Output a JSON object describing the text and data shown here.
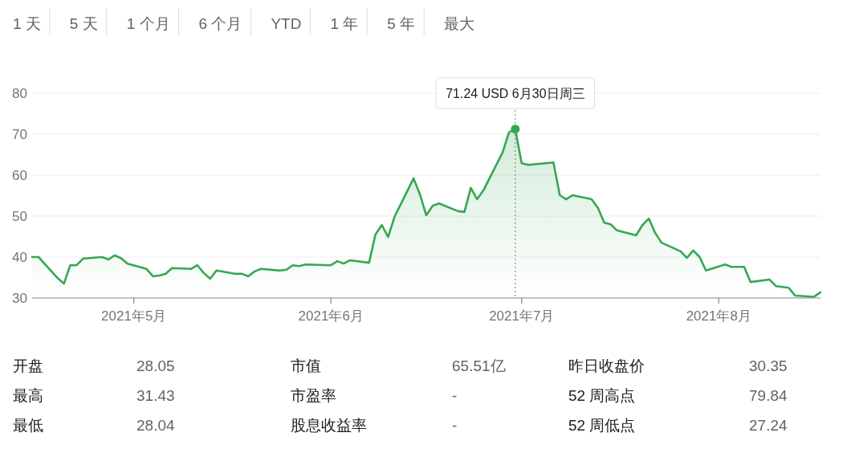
{
  "chart_data": {
    "type": "area",
    "x": [
      "2021-04-15",
      "2021-04-16",
      "2021-04-19",
      "2021-04-20",
      "2021-04-21",
      "2021-04-22",
      "2021-04-23",
      "2021-04-26",
      "2021-04-27",
      "2021-04-28",
      "2021-04-29",
      "2021-04-30",
      "2021-05-03",
      "2021-05-04",
      "2021-05-05",
      "2021-05-06",
      "2021-05-07",
      "2021-05-10",
      "2021-05-11",
      "2021-05-12",
      "2021-05-13",
      "2021-05-14",
      "2021-05-17",
      "2021-05-18",
      "2021-05-19",
      "2021-05-20",
      "2021-05-21",
      "2021-05-24",
      "2021-05-25",
      "2021-05-26",
      "2021-05-27",
      "2021-05-28",
      "2021-06-01",
      "2021-06-02",
      "2021-06-03",
      "2021-06-04",
      "2021-06-07",
      "2021-06-08",
      "2021-06-09",
      "2021-06-10",
      "2021-06-11",
      "2021-06-14",
      "2021-06-15",
      "2021-06-16",
      "2021-06-17",
      "2021-06-18",
      "2021-06-21",
      "2021-06-22",
      "2021-06-23",
      "2021-06-24",
      "2021-06-25",
      "2021-06-28",
      "2021-06-29",
      "2021-06-30",
      "2021-07-01",
      "2021-07-02",
      "2021-07-06",
      "2021-07-07",
      "2021-07-08",
      "2021-07-09",
      "2021-07-12",
      "2021-07-13",
      "2021-07-14",
      "2021-07-15",
      "2021-07-16",
      "2021-07-19",
      "2021-07-20",
      "2021-07-21",
      "2021-07-22",
      "2021-07-23",
      "2021-07-26",
      "2021-07-27",
      "2021-07-28",
      "2021-07-29",
      "2021-07-30",
      "2021-08-02",
      "2021-08-03",
      "2021-08-04",
      "2021-08-05",
      "2021-08-06",
      "2021-08-09",
      "2021-08-10",
      "2021-08-11",
      "2021-08-12",
      "2021-08-13",
      "2021-08-16",
      "2021-08-17"
    ],
    "series": [
      {
        "color": "#34a853",
        "values": [
          40.0,
          40.0,
          34.9,
          33.5,
          38.0,
          38.0,
          39.6,
          40.0,
          39.4,
          40.4,
          39.7,
          38.4,
          37.1,
          35.3,
          35.5,
          35.9,
          37.3,
          37.1,
          38.0,
          36.1,
          34.7,
          36.7,
          35.9,
          35.9,
          35.3,
          36.5,
          37.1,
          36.7,
          36.9,
          38.0,
          37.8,
          38.2,
          38.0,
          39.0,
          38.4,
          39.2,
          38.6,
          45.5,
          47.8,
          44.9,
          49.8,
          59.2,
          55.3,
          50.2,
          52.5,
          53.1,
          51.2,
          51.0,
          56.9,
          54.1,
          56.3,
          65.5,
          70.4,
          71.24,
          62.9,
          62.5,
          63.1,
          55.1,
          54.1,
          55.1,
          54.1,
          52.0,
          48.4,
          48.0,
          46.5,
          45.3,
          47.8,
          49.4,
          45.9,
          43.5,
          41.4,
          39.8,
          41.6,
          40.0,
          36.7,
          38.2,
          37.6,
          37.6,
          37.6,
          33.9,
          34.5,
          32.9,
          32.7,
          32.5,
          30.6,
          30.3,
          31.4
        ]
      }
    ],
    "xlim": [
      "2021-04-15",
      "2021-08-17"
    ],
    "xticks": [
      {
        "value": "2021-05-01",
        "label": "2021年5月"
      },
      {
        "value": "2021-06-01",
        "label": "2021年6月"
      },
      {
        "value": "2021-07-01",
        "label": "2021年7月"
      },
      {
        "value": "2021-08-01",
        "label": "2021年8月"
      }
    ],
    "ylim": [
      30,
      80
    ],
    "yticks": [
      30,
      40,
      50,
      60,
      70,
      80
    ],
    "grid": "y",
    "ref_lines": [
      {
        "axis": "x",
        "value": "2021-06-30",
        "line_style": "dotted",
        "color": "#757575"
      }
    ],
    "annotations": [
      "1 天",
      "5 天",
      "1 个月",
      "6 个月",
      "YTD",
      "1 年",
      "5 年",
      "最大",
      {
        "text": "71.24 USD  6月30日周三",
        "x": "2021-06-30",
        "y": 71.24
      },
      "开盘",
      "28.05",
      "市值",
      "65.51亿",
      "昨日收盘价",
      "30.35",
      "最高",
      "31.43",
      "市盈率",
      "-",
      "52 周高点",
      "79.84",
      "最低",
      "28.04",
      "股息收益率",
      "-",
      "52 周低点",
      "27.24"
    ]
  }
}
